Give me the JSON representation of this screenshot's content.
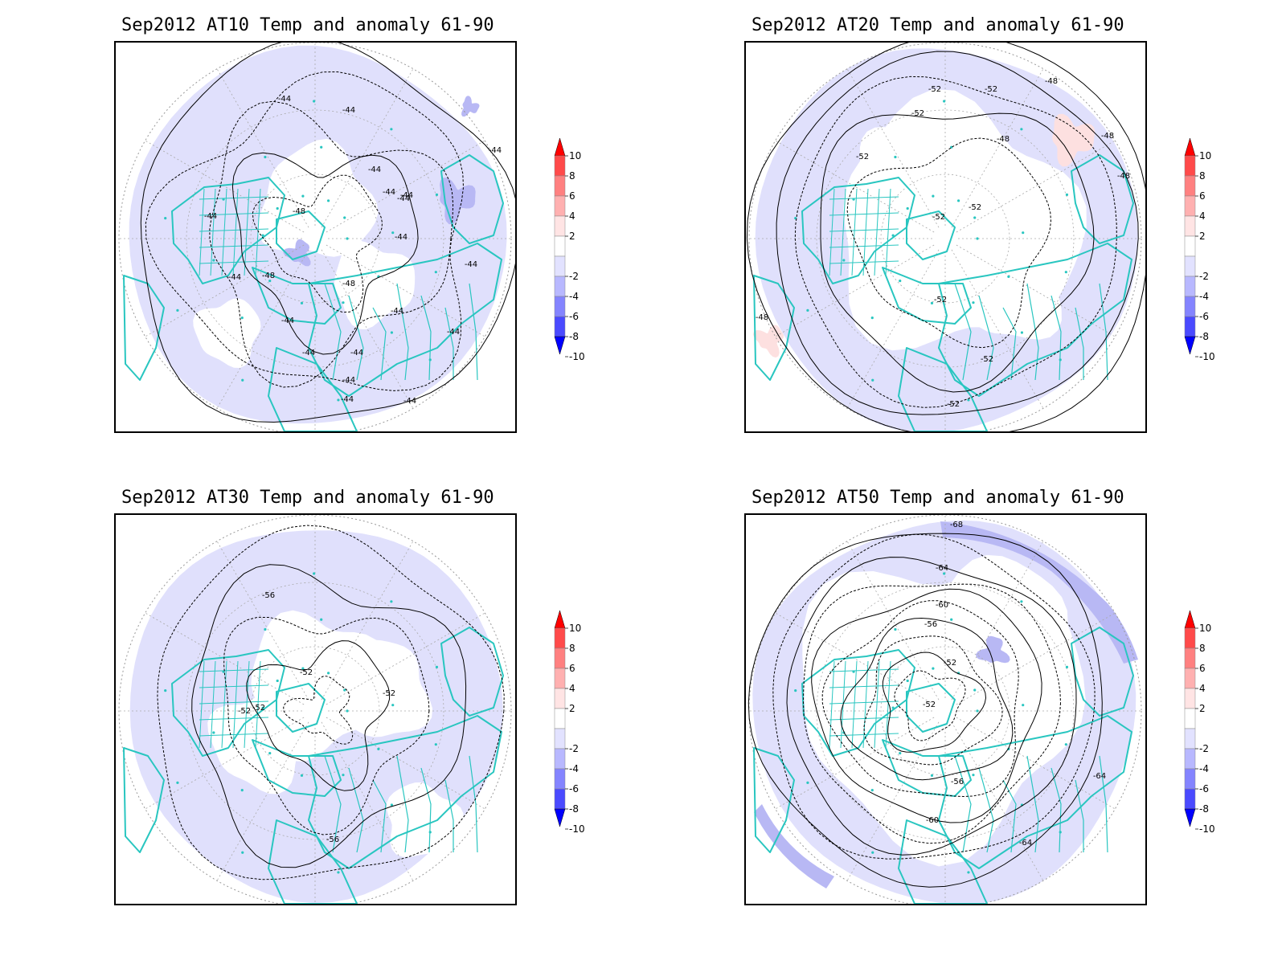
{
  "colorbar": {
    "levels": [
      "10",
      "8",
      "6",
      "4",
      "2",
      "-2",
      "-4",
      "-6",
      "-8",
      "-10"
    ],
    "colors": [
      "#ff0000",
      "#ff4a4a",
      "#ff8080",
      "#ffb0b0",
      "#ffe4e4",
      "#ffffff",
      "#e2e2ff",
      "#b8b8ff",
      "#8484ff",
      "#4a4aff",
      "#0000ff"
    ]
  },
  "style": {
    "land": "#29c6c0",
    "anom_light": "#e0e0fc",
    "anom_mid": "#b8b8f4",
    "anom_pos": "#fde0e0"
  },
  "panels": [
    {
      "id": "at10",
      "title": "Sep2012 AT10 Temp and anomaly 61-90",
      "contour_labels": [
        "-44",
        "-44",
        "-44",
        "-44",
        "-44",
        "-44",
        "-48",
        "-48",
        "-48",
        "-44",
        "-44",
        "-44",
        "-44",
        "-44",
        "-44",
        "-44",
        "-44",
        "-44",
        "-44",
        "-44",
        "-44",
        "-44"
      ]
    },
    {
      "id": "at20",
      "title": "Sep2012 AT20 Temp and anomaly 61-90",
      "contour_labels": [
        "-52",
        "-52",
        "-52",
        "-48",
        "-48",
        "-48",
        "-48",
        "-52",
        "-52",
        "-52",
        "-52",
        "-52",
        "-52",
        "-48"
      ]
    },
    {
      "id": "at30",
      "title": "Sep2012 AT30 Temp and anomaly 61-90",
      "contour_labels": [
        "-56",
        "-52",
        "-52",
        "-52",
        "-52",
        "-56"
      ]
    },
    {
      "id": "at50",
      "title": "Sep2012 AT50 Temp and anomaly 61-90",
      "contour_labels": [
        "-68",
        "-64",
        "-60",
        "-56",
        "-52",
        "-52",
        "-56",
        "-60",
        "-64",
        "-64"
      ]
    }
  ]
}
